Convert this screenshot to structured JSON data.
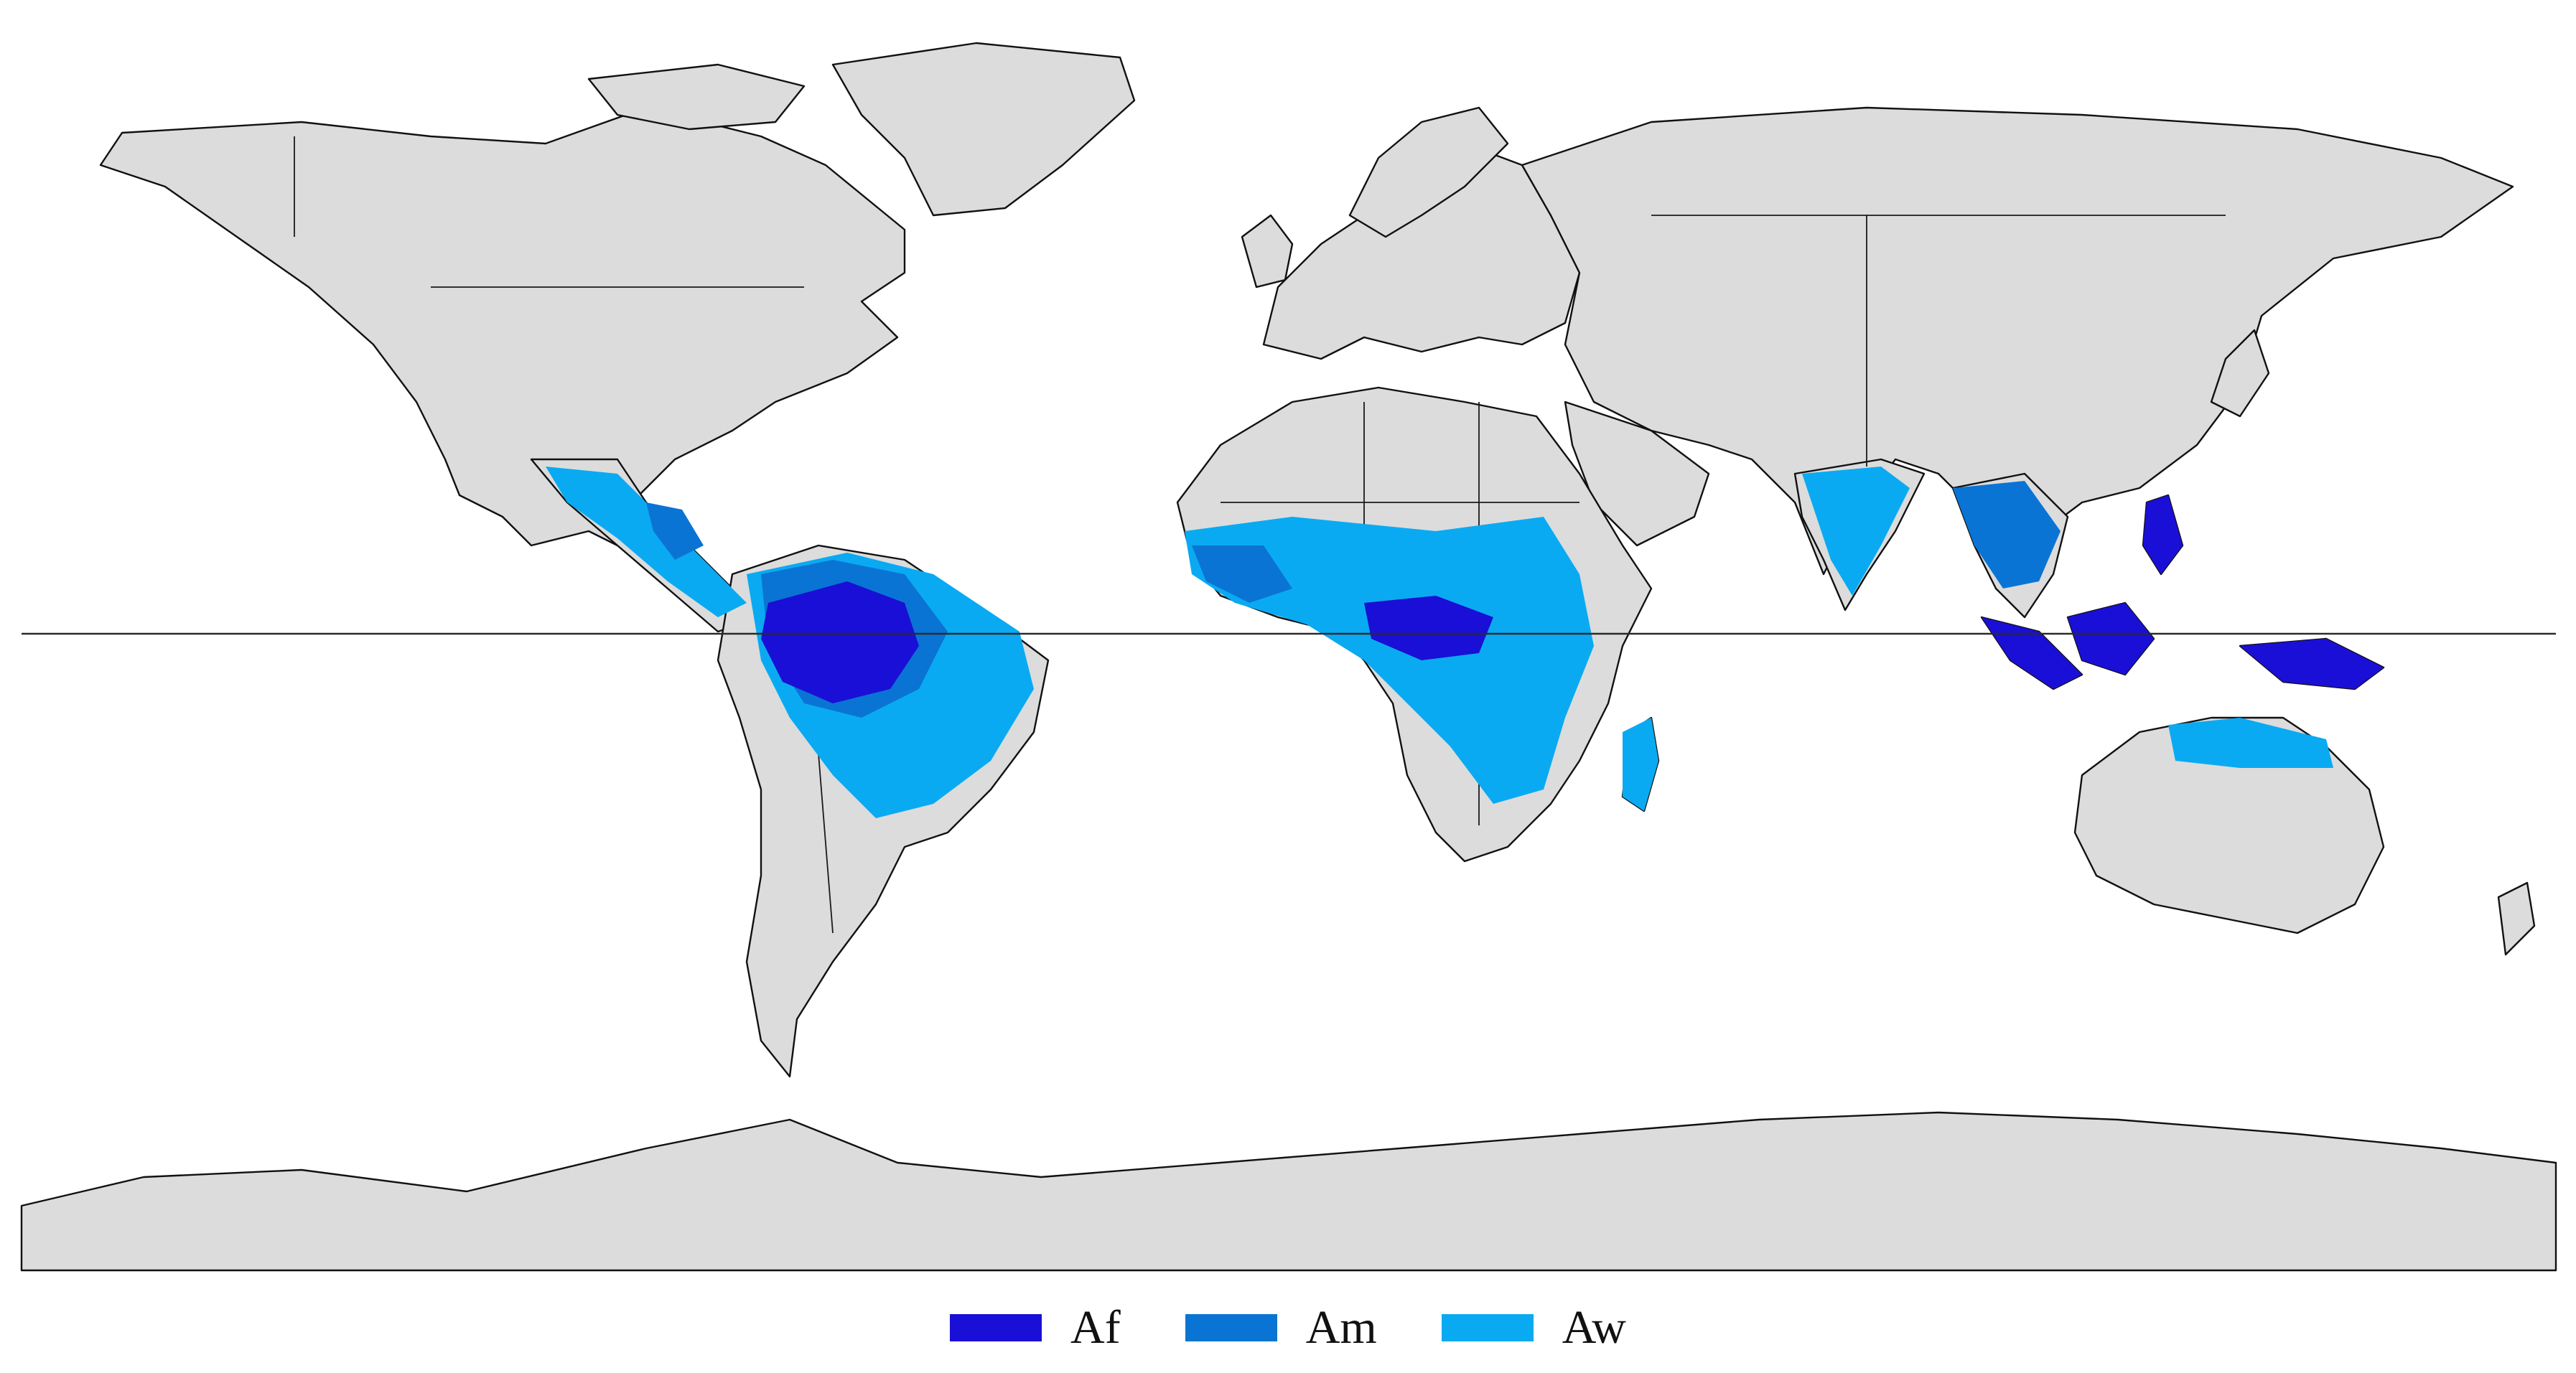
{
  "legend": {
    "items": [
      {
        "key": "af",
        "label": "Af",
        "color": "#1a0fd6"
      },
      {
        "key": "am",
        "label": "Am",
        "color": "#0a74d4"
      },
      {
        "key": "aw",
        "label": "Aw",
        "color": "#0aaaf2"
      }
    ]
  },
  "map": {
    "land_color": "#dcdcdc",
    "ocean_color": "#ffffff",
    "equator_line": true
  }
}
